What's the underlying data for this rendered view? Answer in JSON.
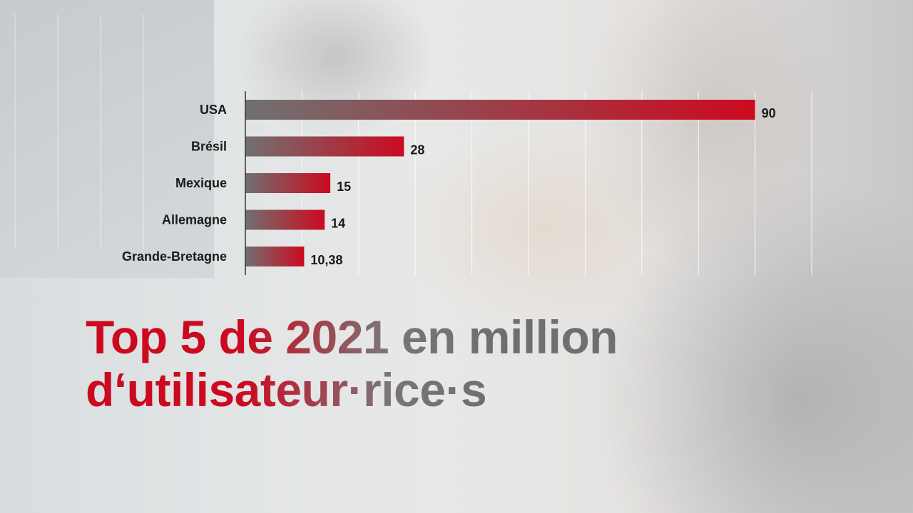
{
  "title": {
    "line1": "Top 5 de 2021 en million",
    "line2": "d‘utilisateur·rice·s"
  },
  "colors": {
    "bar_start": "#707070",
    "bar_end": "#cc0a1f",
    "title_red": "#cc0a1f",
    "title_gray": "#6f6f6f",
    "grid": "#ffffff",
    "axis": "#333333"
  },
  "chart_data": {
    "type": "bar",
    "orientation": "horizontal",
    "categories": [
      "USA",
      "Brésil",
      "Mexique",
      "Allemagne",
      "Grande-Bretagne"
    ],
    "values": [
      90,
      28,
      15,
      14,
      10.38
    ],
    "value_labels": [
      "90",
      "28",
      "15",
      "14",
      "10,38"
    ],
    "xlim": [
      0,
      100
    ],
    "grid": true,
    "title": "Top 5 de 2021 en million d‘utilisateur·rice·s",
    "xlabel": "",
    "ylabel": ""
  }
}
